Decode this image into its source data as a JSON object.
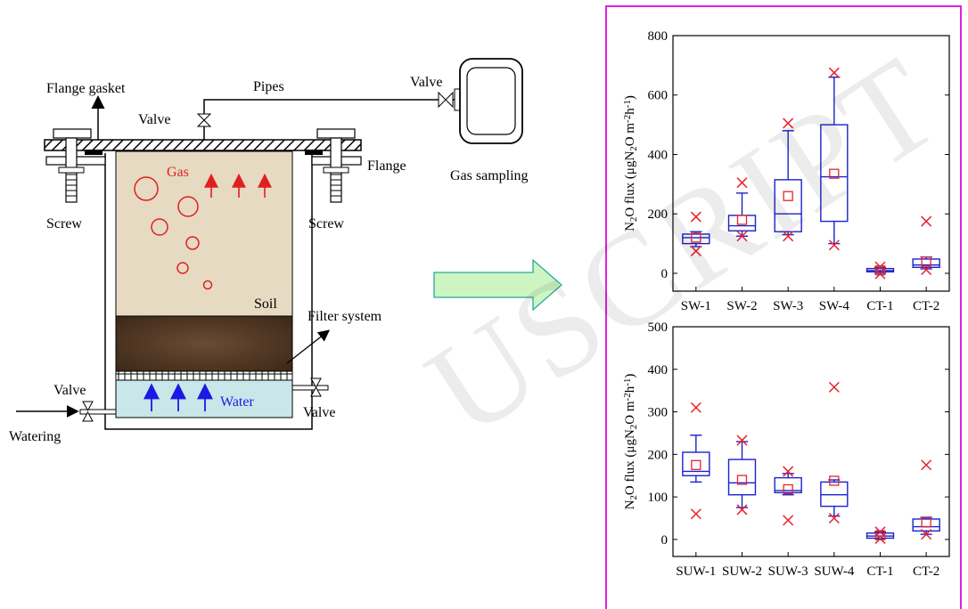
{
  "watermark": "USCRIPT",
  "apparatus": {
    "labels": {
      "flange_gasket": "Flange gasket",
      "pipes": "Pipes",
      "valve_top": "Valve",
      "valve_right": "Valve",
      "valve_left": "Valve",
      "valve_outlet": "Valve",
      "flange": "Flange",
      "gas_sampling": "Gas sampling",
      "screw_left": "Screw",
      "screw_right": "Screw",
      "gas": "Gas",
      "soil": "Soil",
      "filter_system": "Filter system",
      "water": "Water",
      "watering": "Watering"
    },
    "colors": {
      "soil": "#e6dac2",
      "filter": "#4a3424",
      "water": "#c9e7e8",
      "gas": "#e02020",
      "water_text": "#1a1ae6",
      "arrow_fill": "#ccf5c2",
      "arrow_stroke": "#2aa89a"
    }
  },
  "chart_data": [
    {
      "type": "box",
      "ylabel_parts": [
        "N",
        "2",
        "O flux (μgN",
        "2",
        "O m",
        "-2",
        "h",
        "-1",
        ")"
      ],
      "ylim": [
        -60,
        800
      ],
      "yticks": [
        0,
        200,
        400,
        600,
        800
      ],
      "categories": [
        "SW-1",
        "SW-2",
        "SW-3",
        "SW-4",
        "CT-1",
        "CT-2"
      ],
      "boxes": [
        {
          "min": 90,
          "q1": 100,
          "median": 120,
          "q3": 132,
          "max": 140,
          "mean": 120,
          "extremes": [
            190,
            75
          ]
        },
        {
          "min": 125,
          "q1": 143,
          "median": 160,
          "q3": 195,
          "max": 270,
          "mean": 180,
          "extremes": [
            305,
            125
          ]
        },
        {
          "min": 130,
          "q1": 140,
          "median": 200,
          "q3": 315,
          "max": 480,
          "mean": 260,
          "extremes": [
            505,
            125
          ]
        },
        {
          "min": 100,
          "q1": 175,
          "median": 325,
          "q3": 500,
          "max": 660,
          "mean": 335,
          "extremes": [
            675,
            95
          ]
        },
        {
          "min": 0,
          "q1": 5,
          "median": 9,
          "q3": 16,
          "max": 20,
          "mean": 10,
          "extremes": [
            22,
            -2
          ]
        },
        {
          "min": 15,
          "q1": 20,
          "median": 28,
          "q3": 48,
          "max": 55,
          "mean": 40,
          "extremes": [
            175,
            12
          ]
        }
      ],
      "colors": {
        "box": "#1a22cc",
        "marker": "#e8232a"
      }
    },
    {
      "type": "box",
      "ylabel_parts": [
        "N",
        "2",
        "O flux (μgN",
        "2",
        "O m",
        "-2",
        "h",
        "-1",
        ")"
      ],
      "ylim": [
        -40,
        500
      ],
      "yticks": [
        0,
        100,
        200,
        300,
        400,
        500
      ],
      "categories": [
        "SUW-1",
        "SUW-2",
        "SUW-3",
        "SUW-4",
        "CT-1",
        "CT-2"
      ],
      "boxes": [
        {
          "min": 135,
          "q1": 150,
          "median": 160,
          "q3": 205,
          "max": 245,
          "mean": 175,
          "extremes": [
            310,
            60
          ]
        },
        {
          "min": 75,
          "q1": 105,
          "median": 133,
          "q3": 188,
          "max": 230,
          "mean": 140,
          "extremes": [
            233,
            70
          ]
        },
        {
          "min": 105,
          "q1": 110,
          "median": 115,
          "q3": 145,
          "max": 155,
          "mean": 118,
          "extremes": [
            160,
            45
          ]
        },
        {
          "min": 55,
          "q1": 78,
          "median": 105,
          "q3": 135,
          "max": 140,
          "mean": 138,
          "extremes": [
            358,
            50
          ]
        },
        {
          "min": 2,
          "q1": 3,
          "median": 8,
          "q3": 15,
          "max": 18,
          "mean": 10,
          "extremes": [
            18,
            2
          ]
        },
        {
          "min": 12,
          "q1": 20,
          "median": 30,
          "q3": 48,
          "max": 52,
          "mean": 40,
          "extremes": [
            175,
            12
          ]
        }
      ],
      "colors": {
        "box": "#1a22cc",
        "marker": "#e8232a"
      }
    }
  ]
}
